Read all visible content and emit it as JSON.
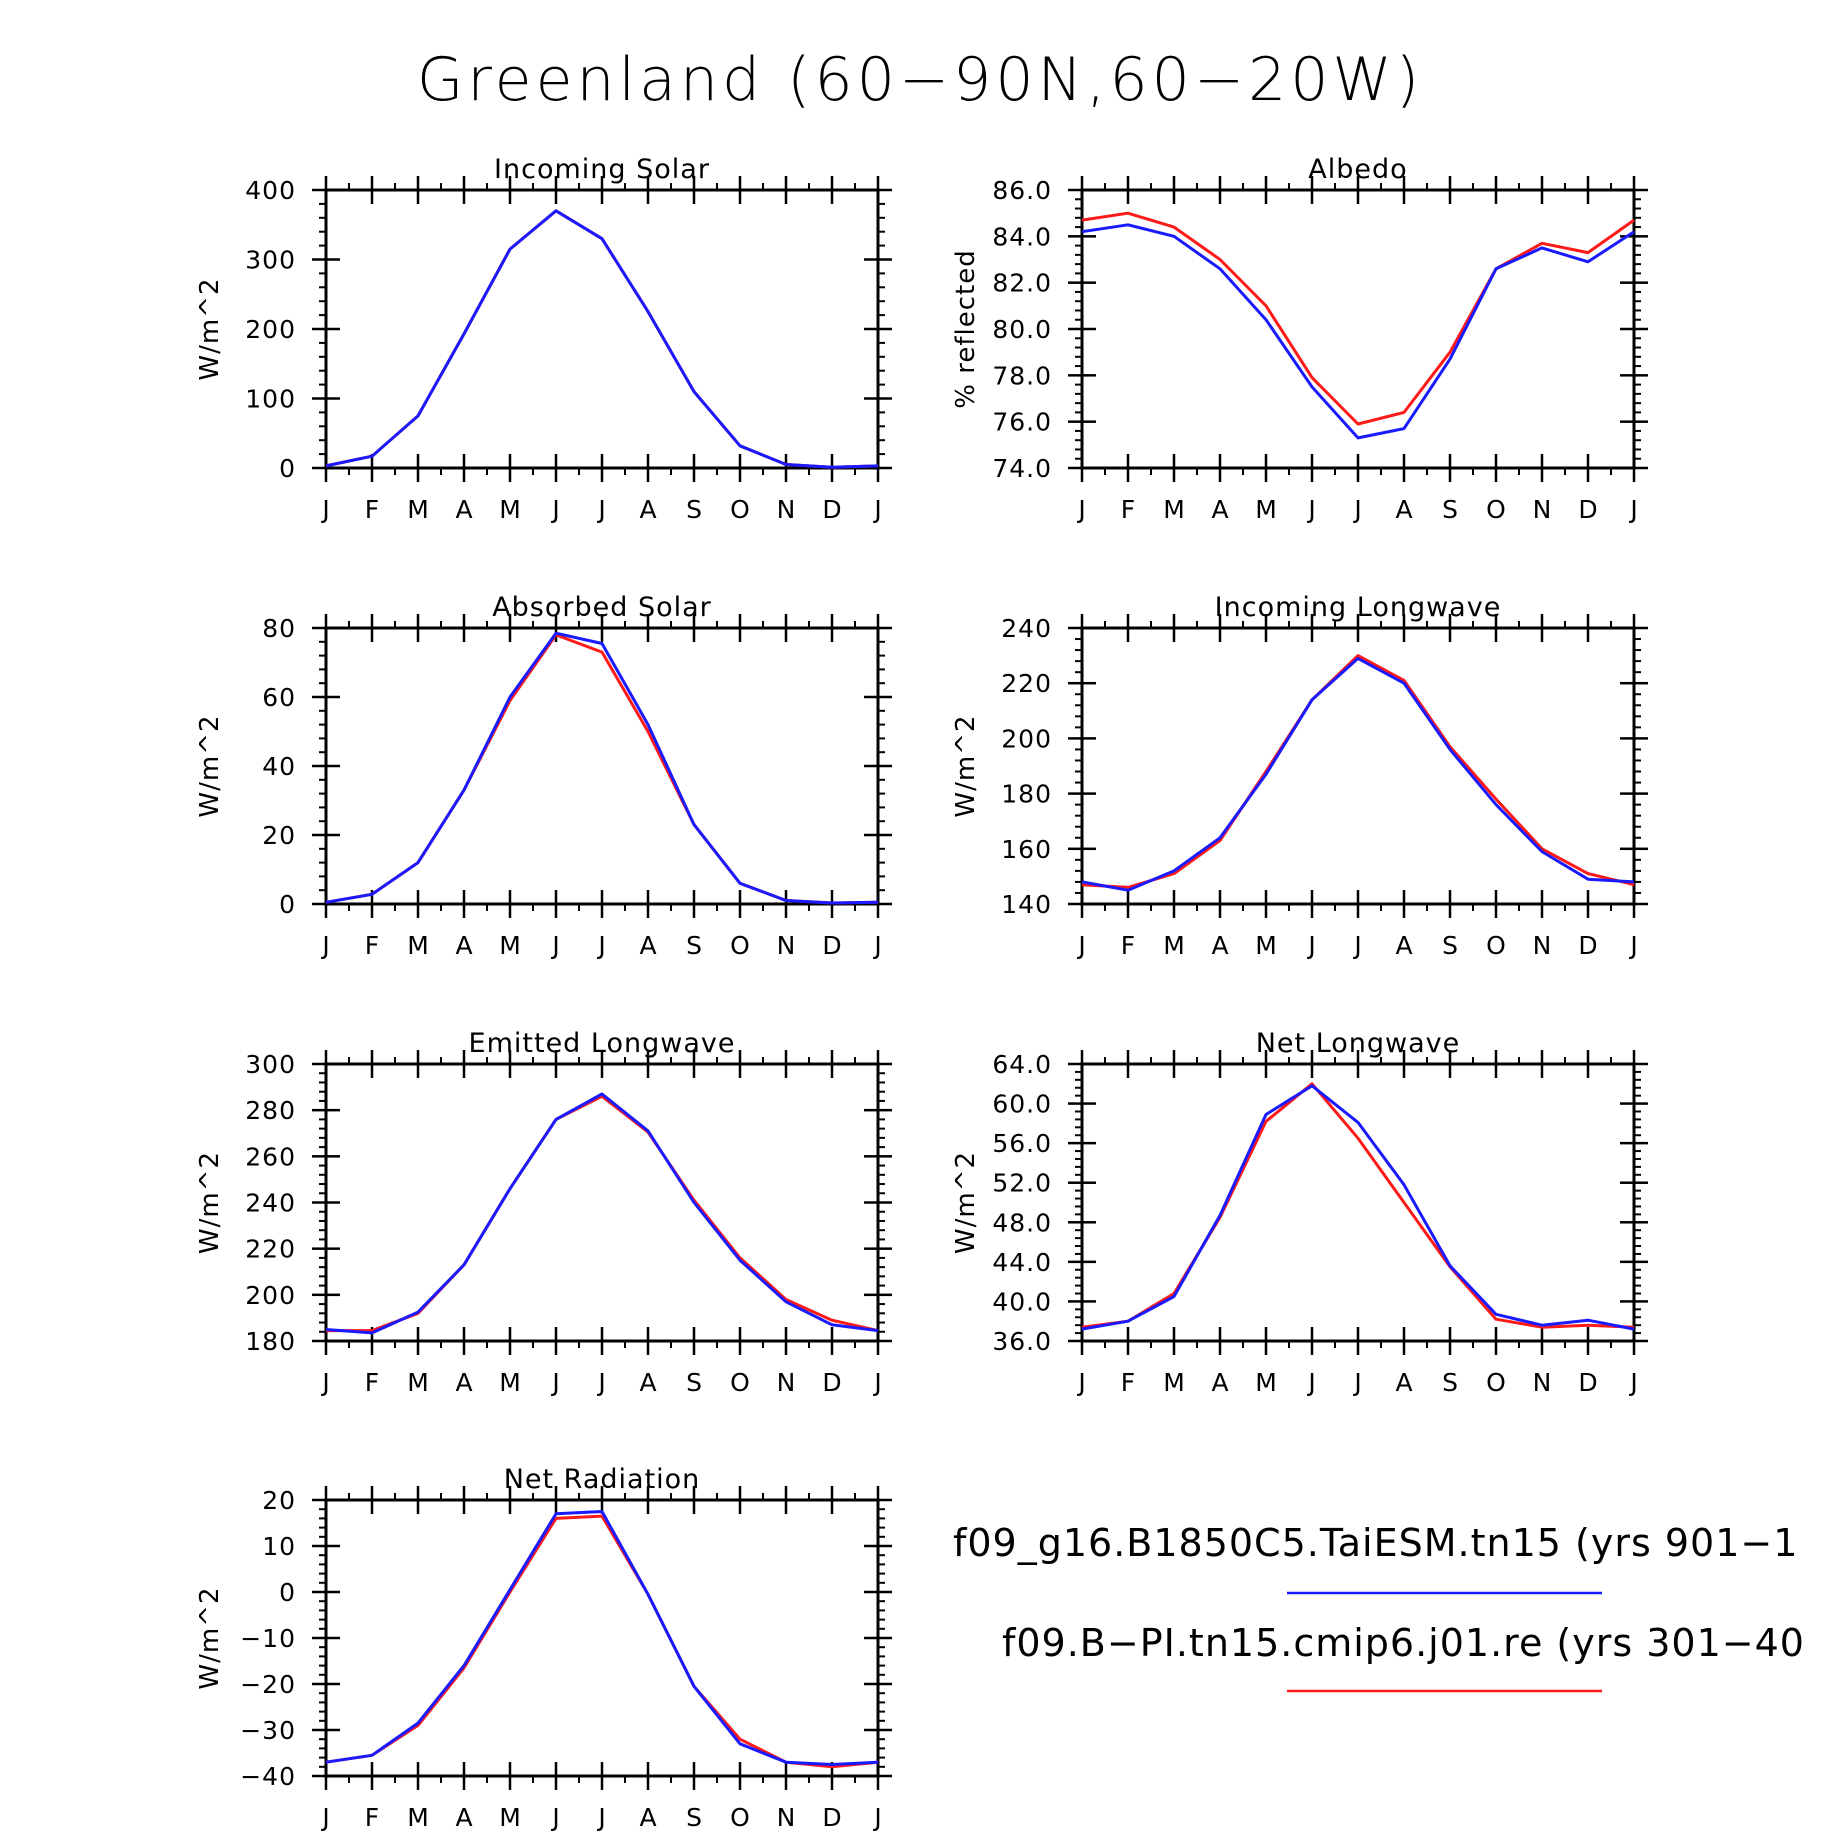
{
  "title": "Greenland (60−90N,60−20W)",
  "months": [
    "J",
    "F",
    "M",
    "A",
    "M",
    "J",
    "J",
    "A",
    "S",
    "O",
    "N",
    "D",
    "J"
  ],
  "colors": {
    "blue": "#1a1aff",
    "red": "#ff1a1a"
  },
  "legend": [
    {
      "label": "f09_g16.B1850C5.TaiESM.tn15 (yrs 901−1",
      "color": "#1a1aff"
    },
    {
      "label": "f09.B−PI.tn15.cmip6.j01.re (yrs 301−40",
      "color": "#ff1a1a"
    }
  ],
  "chart_data": [
    {
      "id": "incoming-solar",
      "type": "line",
      "title": "Incoming Solar",
      "ylabel": "W/m^2",
      "ylim": [
        0,
        400
      ],
      "yticks": [
        "0",
        "100",
        "200",
        "300",
        "400"
      ],
      "series": [
        {
          "color": "red",
          "values": [
            3,
            17,
            75,
            193,
            315,
            370,
            330,
            225,
            110,
            32,
            5,
            1,
            3
          ]
        },
        {
          "color": "blue",
          "values": [
            3,
            17,
            75,
            193,
            315,
            370,
            330,
            225,
            110,
            32,
            5,
            1,
            3
          ]
        }
      ]
    },
    {
      "id": "albedo",
      "type": "line",
      "title": "Albedo",
      "ylabel": "% reflected",
      "ylim": [
        74,
        86
      ],
      "yticks": [
        "74.0",
        "76.0",
        "78.0",
        "80.0",
        "82.0",
        "84.0",
        "86.0"
      ],
      "series": [
        {
          "color": "red",
          "values": [
            84.7,
            85.0,
            84.4,
            83.0,
            81.0,
            77.9,
            75.9,
            76.4,
            79.0,
            82.6,
            83.7,
            83.3,
            84.7
          ]
        },
        {
          "color": "blue",
          "values": [
            84.2,
            84.5,
            84.0,
            82.6,
            80.4,
            77.5,
            75.3,
            75.7,
            78.7,
            82.6,
            83.5,
            82.9,
            84.2
          ]
        }
      ]
    },
    {
      "id": "absorbed-solar",
      "type": "line",
      "title": "Absorbed Solar",
      "ylabel": "W/m^2",
      "ylim": [
        0,
        80
      ],
      "yticks": [
        "0",
        "20",
        "40",
        "60",
        "80"
      ],
      "series": [
        {
          "color": "red",
          "values": [
            0.5,
            2.8,
            12,
            33,
            59,
            78,
            73,
            50,
            23,
            6,
            1,
            0.3,
            0.5
          ]
        },
        {
          "color": "blue",
          "values": [
            0.5,
            2.8,
            12,
            33,
            60,
            78.5,
            75.5,
            52,
            23,
            6,
            1,
            0.3,
            0.5
          ]
        }
      ]
    },
    {
      "id": "incoming-longwave",
      "type": "line",
      "title": "Incoming Longwave",
      "ylabel": "W/m^2",
      "ylim": [
        140,
        240
      ],
      "yticks": [
        "140",
        "160",
        "180",
        "200",
        "220",
        "240"
      ],
      "series": [
        {
          "color": "red",
          "values": [
            147,
            146,
            151,
            163,
            188,
            214,
            230,
            221,
            197,
            178,
            160,
            151,
            147
          ]
        },
        {
          "color": "blue",
          "values": [
            148,
            145,
            152,
            164,
            187,
            214,
            229,
            220,
            196,
            176,
            159,
            149,
            148
          ]
        }
      ]
    },
    {
      "id": "emitted-longwave",
      "type": "line",
      "title": "Emitted Longwave",
      "ylabel": "W/m^2",
      "ylim": [
        180,
        300
      ],
      "yticks": [
        "180",
        "200",
        "220",
        "240",
        "260",
        "280",
        "300"
      ],
      "series": [
        {
          "color": "red",
          "values": [
            184.5,
            184.5,
            192,
            213,
            246,
            276,
            286,
            270.5,
            241,
            216,
            198,
            189,
            184.5
          ]
        },
        {
          "color": "blue",
          "values": [
            185,
            183.5,
            192.5,
            213,
            246,
            276,
            287,
            271,
            240,
            215,
            197,
            187,
            184.5
          ]
        }
      ]
    },
    {
      "id": "net-longwave",
      "type": "line",
      "title": "Net Longwave",
      "ylabel": "W/m^2",
      "ylim": [
        36,
        64
      ],
      "yticks": [
        "36.0",
        "40.0",
        "44.0",
        "48.0",
        "52.0",
        "56.0",
        "60.0",
        "64.0"
      ],
      "series": [
        {
          "color": "red",
          "values": [
            37.4,
            38.0,
            40.8,
            48.5,
            58.2,
            62.0,
            56.5,
            50.0,
            43.5,
            38.2,
            37.4,
            37.6,
            37.4
          ]
        },
        {
          "color": "blue",
          "values": [
            37.2,
            38.0,
            40.5,
            48.7,
            58.9,
            61.8,
            58.1,
            51.8,
            43.6,
            38.7,
            37.6,
            38.1,
            37.2
          ]
        }
      ]
    },
    {
      "id": "net-radiation",
      "type": "line",
      "title": "Net Radiation",
      "ylabel": "W/m^2",
      "ylim": [
        -40,
        20
      ],
      "yticks": [
        "−40",
        "−30",
        "−20",
        "−10",
        "0",
        "10",
        "20"
      ],
      "series": [
        {
          "color": "red",
          "values": [
            -37,
            -35.5,
            -29,
            -16.5,
            0,
            16,
            16.5,
            -0.5,
            -20.5,
            -32,
            -37,
            -38,
            -37
          ]
        },
        {
          "color": "blue",
          "values": [
            -37,
            -35.5,
            -28.5,
            -16,
            0.5,
            17,
            17.5,
            -0.5,
            -20.5,
            -33,
            -37,
            -37.5,
            -37
          ]
        }
      ]
    }
  ]
}
